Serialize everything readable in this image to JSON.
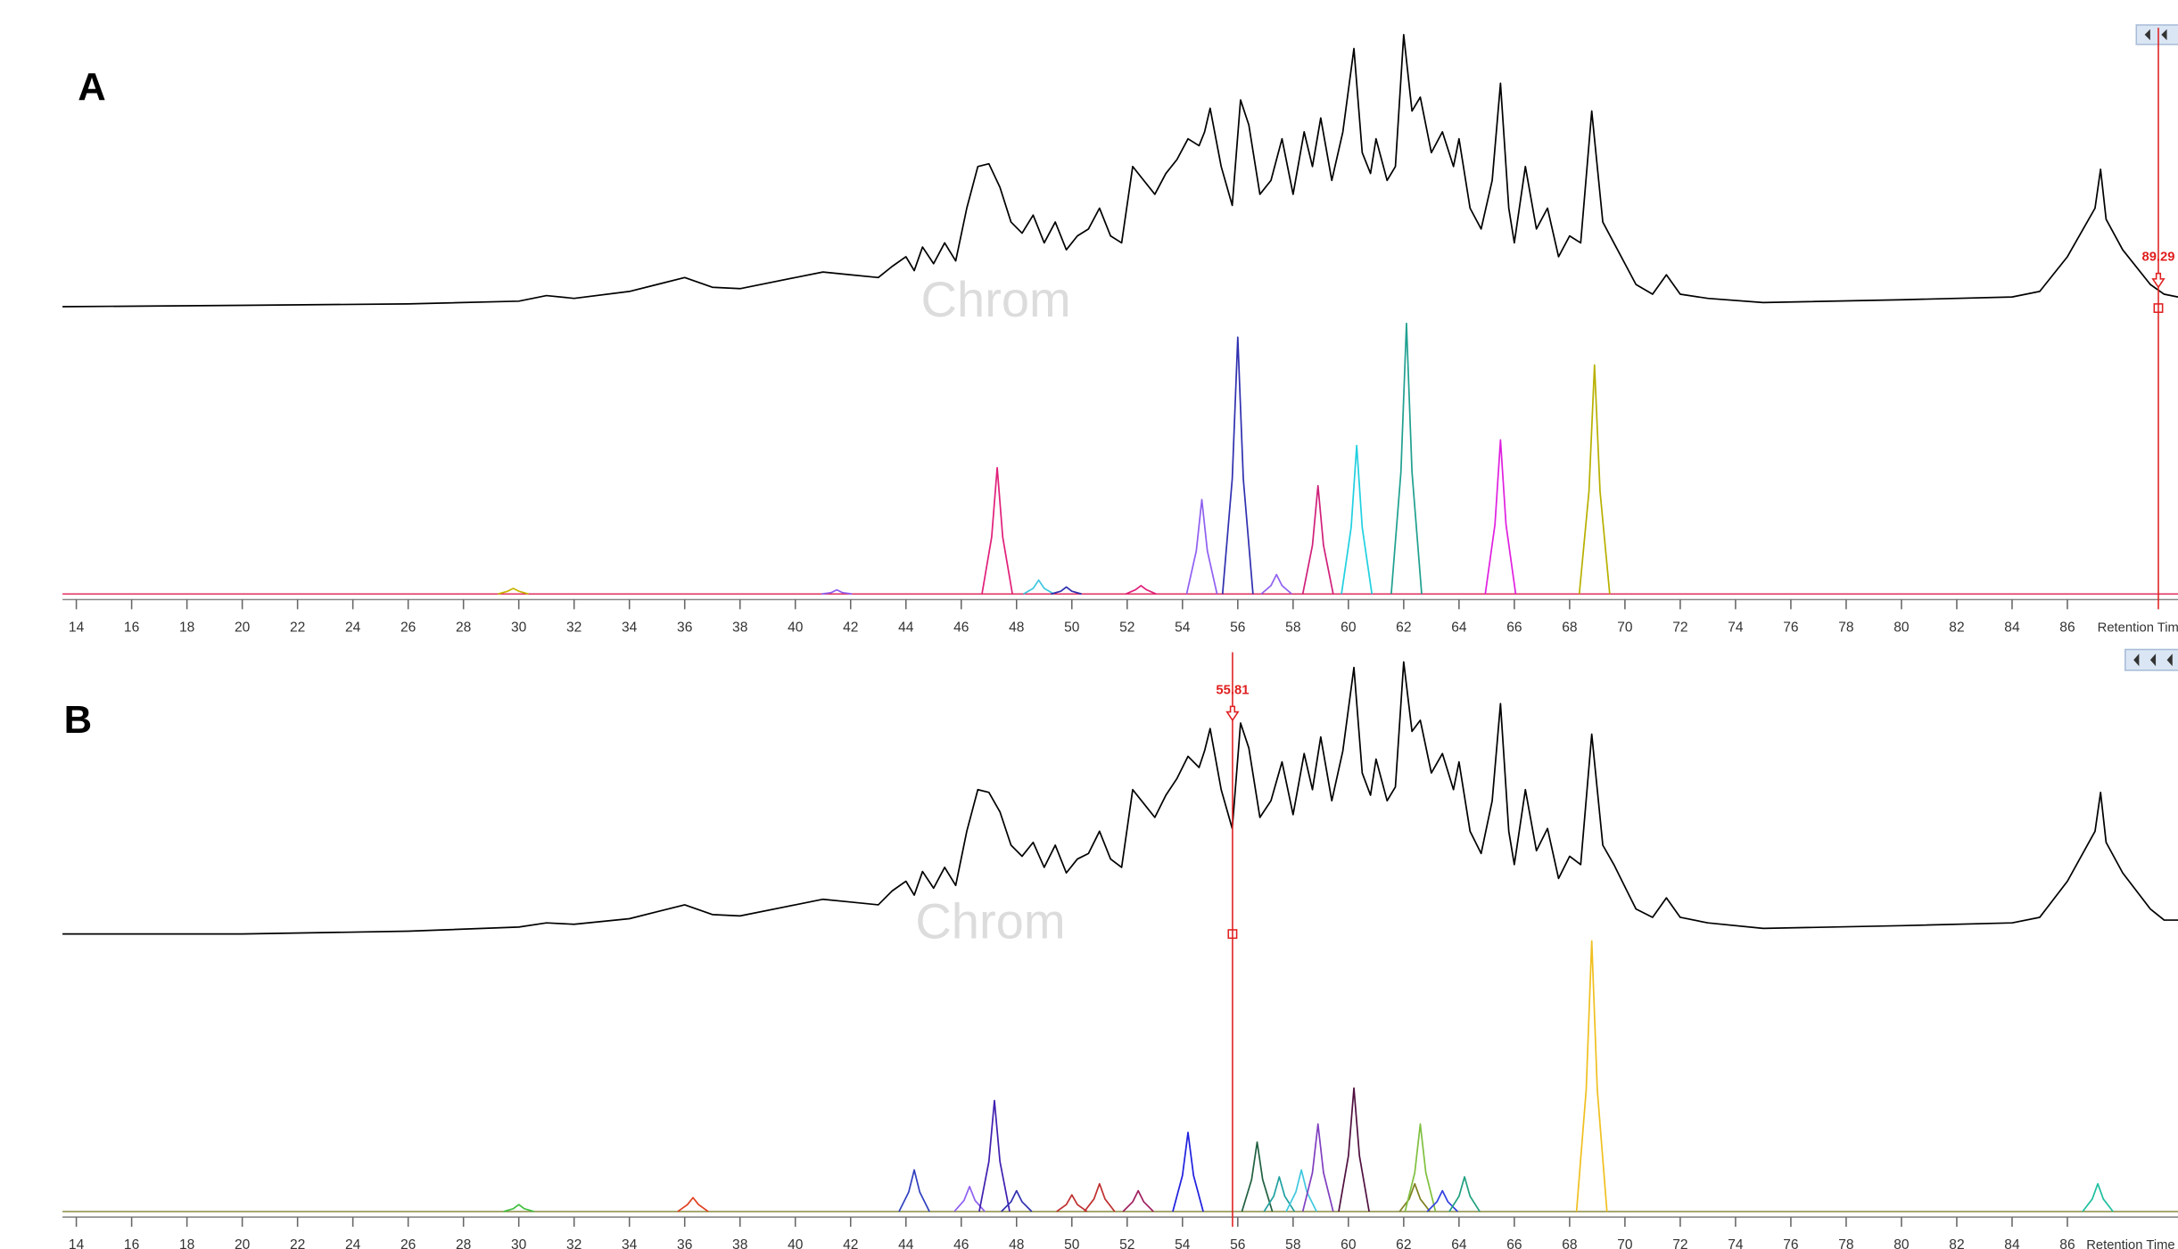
{
  "chart_data": [
    {
      "type": "line",
      "label": "A",
      "watermark": "Chrom",
      "xlabel": "Retention Time",
      "xlim": [
        13.5,
        90
      ],
      "xticks": [
        14,
        16,
        18,
        20,
        22,
        24,
        26,
        28,
        30,
        32,
        34,
        36,
        38,
        40,
        42,
        44,
        46,
        48,
        50,
        52,
        54,
        56,
        58,
        60,
        62,
        64,
        66,
        68,
        70,
        72,
        74,
        76,
        78,
        80,
        82,
        84,
        86
      ],
      "cursor": 89.29,
      "ylim": [
        0,
        200
      ],
      "tic": {
        "color": "#000000",
        "x": [
          13.5,
          20,
          26,
          30,
          31,
          32,
          34,
          35,
          36,
          37,
          38,
          40,
          41,
          42,
          43,
          43.5,
          44,
          44.3,
          44.6,
          45,
          45.4,
          45.8,
          46.2,
          46.6,
          47,
          47.4,
          47.8,
          48.2,
          48.6,
          49,
          49.4,
          49.8,
          50.2,
          50.6,
          51,
          51.4,
          51.8,
          52.2,
          52.6,
          53,
          53.4,
          53.8,
          54.2,
          54.6,
          54.8,
          55,
          55.4,
          55.8,
          56.1,
          56.4,
          56.8,
          57.2,
          57.6,
          58,
          58.4,
          58.7,
          59,
          59.4,
          59.8,
          60.2,
          60.5,
          60.8,
          61,
          61.4,
          61.7,
          62,
          62.3,
          62.6,
          63,
          63.4,
          63.8,
          64,
          64.4,
          64.8,
          65.2,
          65.5,
          65.8,
          66,
          66.4,
          66.8,
          67.2,
          67.6,
          68,
          68.4,
          68.8,
          69.2,
          69.6,
          70,
          70.4,
          71,
          71.5,
          72,
          73,
          75,
          80,
          84,
          85,
          86,
          87,
          87.2,
          87.4,
          88,
          89,
          89.5,
          90
        ],
        "values": [
          1,
          2,
          3,
          5,
          9,
          7,
          12,
          17,
          22,
          15,
          14,
          22,
          26,
          24,
          22,
          30,
          37,
          27,
          44,
          32,
          47,
          34,
          72,
          102,
          104,
          87,
          62,
          54,
          67,
          47,
          62,
          42,
          52,
          57,
          72,
          52,
          47,
          102,
          92,
          82,
          97,
          107,
          122,
          117,
          127,
          144,
          102,
          74,
          150,
          132,
          82,
          92,
          122,
          82,
          127,
          102,
          137,
          92,
          127,
          187,
          112,
          97,
          122,
          92,
          102,
          197,
          142,
          152,
          112,
          127,
          102,
          122,
          72,
          57,
          92,
          162,
          72,
          47,
          102,
          57,
          72,
          37,
          52,
          47,
          142,
          62,
          47,
          32,
          17,
          10,
          24,
          10,
          7,
          4,
          6,
          8,
          12,
          37,
          72,
          100,
          64,
          42,
          17,
          10,
          8
        ]
      },
      "series": [
        {
          "color": "#c8b400",
          "x": [
            29.25,
            29.6,
            29.8,
            30,
            30.35
          ],
          "values": [
            0,
            2,
            4,
            2,
            0
          ]
        },
        {
          "color": "#9060f0",
          "x": [
            40.95,
            41.3,
            41.5,
            41.7,
            42.05
          ],
          "values": [
            0,
            1,
            3,
            1,
            0
          ]
        },
        {
          "color": "#e0207a",
          "x": [
            46.75,
            47.1,
            47.3,
            47.5,
            47.85
          ],
          "values": [
            0,
            41,
            91,
            41,
            0
          ]
        },
        {
          "color": "#40c8e0",
          "x": [
            48.25,
            48.6,
            48.8,
            49,
            49.35
          ],
          "values": [
            0,
            4,
            10,
            4,
            0
          ]
        },
        {
          "color": "#3030b0",
          "x": [
            49.25,
            49.6,
            49.8,
            50,
            50.35
          ],
          "values": [
            0,
            2,
            5,
            2,
            0
          ]
        },
        {
          "color": "#e0207a",
          "x": [
            51.95,
            52.3,
            52.5,
            52.7,
            53.05
          ],
          "values": [
            0,
            3,
            6,
            3,
            0
          ]
        },
        {
          "color": "#9060f0",
          "x": [
            54.15,
            54.5,
            54.7,
            54.9,
            55.25
          ],
          "values": [
            0,
            31,
            68,
            31,
            0
          ]
        },
        {
          "color": "#3030b0",
          "x": [
            55.45,
            55.8,
            56,
            56.2,
            56.55
          ],
          "values": [
            0,
            83,
            185,
            83,
            0
          ]
        },
        {
          "color": "#9060f0",
          "x": [
            56.85,
            57.2,
            57.4,
            57.6,
            57.95
          ],
          "values": [
            0,
            6,
            14,
            6,
            0
          ]
        },
        {
          "color": "#d0207a",
          "x": [
            58.35,
            58.7,
            58.9,
            59.1,
            59.45
          ],
          "values": [
            0,
            35,
            78,
            35,
            0
          ]
        },
        {
          "color": "#20d0e0",
          "x": [
            59.75,
            60.1,
            60.3,
            60.5,
            60.85
          ],
          "values": [
            0,
            48,
            107,
            48,
            0
          ]
        },
        {
          "color": "#20a090",
          "x": [
            61.55,
            61.9,
            62.1,
            62.3,
            62.65
          ],
          "values": [
            0,
            88,
            195,
            88,
            0
          ]
        },
        {
          "color": "#e020e0",
          "x": [
            64.95,
            65.3,
            65.5,
            65.7,
            66.05
          ],
          "values": [
            0,
            50,
            111,
            50,
            0
          ]
        },
        {
          "color": "#b8b000",
          "x": [
            68.35,
            68.7,
            68.9,
            69.1,
            69.45
          ],
          "values": [
            0,
            74,
            165,
            74,
            0
          ]
        }
      ]
    },
    {
      "type": "line",
      "label": "B",
      "watermark": "Chrom",
      "xlabel": "Retention Time",
      "xlim": [
        13.5,
        90
      ],
      "xticks": [
        14,
        16,
        18,
        20,
        22,
        24,
        26,
        28,
        30,
        32,
        34,
        36,
        38,
        40,
        42,
        44,
        46,
        48,
        50,
        52,
        54,
        56,
        58,
        60,
        62,
        64,
        66,
        68,
        70,
        72,
        74,
        76,
        78,
        80,
        82,
        84,
        86
      ],
      "cursor": 55.81,
      "ylim": [
        0,
        200
      ],
      "tic": {
        "color": "#000000",
        "x": [
          13.5,
          20,
          26,
          30,
          31,
          32,
          34,
          35,
          36,
          37,
          38,
          40,
          41,
          42,
          43,
          43.5,
          44,
          44.3,
          44.6,
          45,
          45.4,
          45.8,
          46.2,
          46.6,
          47,
          47.4,
          47.8,
          48.2,
          48.6,
          49,
          49.4,
          49.8,
          50.2,
          50.6,
          51,
          51.4,
          51.8,
          52.2,
          52.6,
          53,
          53.4,
          53.8,
          54.2,
          54.6,
          54.8,
          55,
          55.4,
          55.8,
          56.1,
          56.4,
          56.8,
          57.2,
          57.6,
          58,
          58.4,
          58.7,
          59,
          59.4,
          59.8,
          60.2,
          60.5,
          60.8,
          61,
          61.4,
          61.7,
          62,
          62.3,
          62.6,
          63,
          63.4,
          63.8,
          64,
          64.4,
          64.8,
          65.2,
          65.5,
          65.8,
          66,
          66.4,
          66.8,
          67.2,
          67.6,
          68,
          68.4,
          68.8,
          69.2,
          69.6,
          70,
          70.4,
          71,
          71.5,
          72,
          73,
          75,
          80,
          84,
          85,
          86,
          87,
          87.2,
          87.4,
          88,
          89,
          89.5,
          90
        ],
        "values": [
          0,
          0,
          2,
          5,
          8,
          7,
          11,
          16,
          21,
          14,
          13,
          21,
          25,
          23,
          21,
          31,
          38,
          28,
          45,
          33,
          48,
          35,
          74,
          104,
          102,
          88,
          64,
          56,
          66,
          48,
          64,
          44,
          54,
          58,
          74,
          54,
          48,
          104,
          94,
          84,
          100,
          112,
          128,
          120,
          132,
          148,
          104,
          76,
          152,
          134,
          84,
          96,
          124,
          86,
          130,
          104,
          142,
          96,
          132,
          192,
          116,
          100,
          126,
          96,
          106,
          196,
          146,
          154,
          116,
          130,
          104,
          124,
          74,
          58,
          96,
          166,
          74,
          50,
          104,
          60,
          76,
          40,
          56,
          50,
          144,
          64,
          50,
          34,
          18,
          12,
          26,
          12,
          8,
          4,
          6,
          8,
          12,
          38,
          74,
          102,
          66,
          44,
          18,
          10,
          10
        ]
      },
      "series": [
        {
          "color": "#40c040",
          "x": [
            29.45,
            29.8,
            30,
            30.2,
            30.55
          ],
          "values": [
            0,
            2,
            5,
            2,
            0
          ]
        },
        {
          "color": "#e04020",
          "x": [
            35.75,
            36.1,
            36.3,
            36.5,
            36.85
          ],
          "values": [
            0,
            5,
            10,
            5,
            0
          ]
        },
        {
          "color": "#3040c0",
          "x": [
            43.75,
            44.1,
            44.3,
            44.5,
            44.85
          ],
          "values": [
            0,
            14,
            30,
            14,
            0
          ]
        },
        {
          "color": "#9060f0",
          "x": [
            45.75,
            46.1,
            46.3,
            46.5,
            46.85
          ],
          "values": [
            0,
            8,
            18,
            8,
            0
          ]
        },
        {
          "color": "#4020b0",
          "x": [
            46.65,
            47,
            47.2,
            47.4,
            47.75
          ],
          "values": [
            0,
            36,
            80,
            36,
            0
          ]
        },
        {
          "color": "#3030b0",
          "x": [
            47.45,
            47.8,
            48,
            48.2,
            48.55
          ],
          "values": [
            0,
            7,
            15,
            7,
            0
          ]
        },
        {
          "color": "#c03030",
          "x": [
            49.45,
            49.8,
            50,
            50.2,
            50.55
          ],
          "values": [
            0,
            5,
            12,
            5,
            0
          ]
        },
        {
          "color": "#c03030",
          "x": [
            50.45,
            50.8,
            51,
            51.2,
            51.55
          ],
          "values": [
            0,
            9,
            20,
            9,
            0
          ]
        },
        {
          "color": "#a02060",
          "x": [
            51.85,
            52.2,
            52.4,
            52.6,
            52.95
          ],
          "values": [
            0,
            7,
            15,
            7,
            0
          ]
        },
        {
          "color": "#2020e0",
          "x": [
            53.65,
            54,
            54.2,
            54.4,
            54.75
          ],
          "values": [
            0,
            26,
            57,
            26,
            0
          ]
        },
        {
          "color": "#206040",
          "x": [
            56.15,
            56.5,
            56.7,
            56.9,
            57.25
          ],
          "values": [
            0,
            23,
            50,
            23,
            0
          ]
        },
        {
          "color": "#20a0a0",
          "x": [
            56.95,
            57.3,
            57.5,
            57.7,
            58.05
          ],
          "values": [
            0,
            11,
            25,
            11,
            0
          ]
        },
        {
          "color": "#40c8e0",
          "x": [
            57.75,
            58.1,
            58.3,
            58.5,
            58.85
          ],
          "values": [
            0,
            14,
            30,
            14,
            0
          ]
        },
        {
          "color": "#8040c0",
          "x": [
            58.35,
            58.7,
            58.9,
            59.1,
            59.45
          ],
          "values": [
            0,
            28,
            63,
            28,
            0
          ]
        },
        {
          "color": "#501040",
          "x": [
            59.65,
            60,
            60.2,
            60.4,
            60.75
          ],
          "values": [
            0,
            40,
            89,
            40,
            0
          ]
        },
        {
          "color": "#808020",
          "x": [
            61.85,
            62.2,
            62.4,
            62.6,
            62.95
          ],
          "values": [
            0,
            9,
            20,
            9,
            0
          ]
        },
        {
          "color": "#80c040",
          "x": [
            62.05,
            62.4,
            62.6,
            62.8,
            63.15
          ],
          "values": [
            0,
            28,
            63,
            28,
            0
          ]
        },
        {
          "color": "#3040e0",
          "x": [
            62.85,
            63.2,
            63.4,
            63.6,
            63.95
          ],
          "values": [
            0,
            7,
            15,
            7,
            0
          ]
        },
        {
          "color": "#20a080",
          "x": [
            63.65,
            64,
            64.2,
            64.4,
            64.75
          ],
          "values": [
            0,
            11,
            25,
            11,
            0
          ]
        },
        {
          "color": "#f0c020",
          "x": [
            68.25,
            68.6,
            68.8,
            69,
            69.35
          ],
          "values": [
            0,
            88,
            195,
            88,
            0
          ]
        },
        {
          "color": "#20c0a0",
          "x": [
            86.55,
            86.9,
            87.1,
            87.3,
            87.65
          ],
          "values": [
            0,
            9,
            20,
            9,
            0
          ]
        }
      ]
    }
  ]
}
